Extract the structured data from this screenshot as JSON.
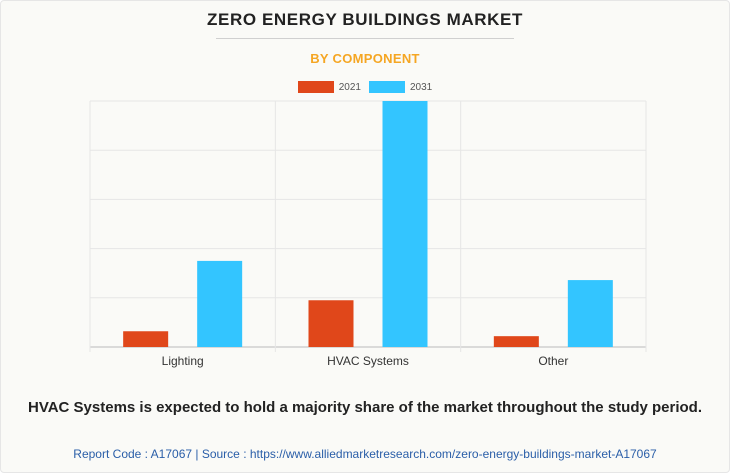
{
  "title": "ZERO ENERGY BUILDINGS MARKET",
  "subtitle": "BY COMPONENT",
  "footnote": "HVAC Systems is expected to hold a majority share of the market throughout the study period.",
  "source_line": "Report Code : A17067  |  Source : https://www.alliedmarketresearch.com/zero-energy-buildings-market-A17067",
  "colors": {
    "series_2021": "#e0471a",
    "series_2031": "#33c5ff",
    "title": "#222222",
    "subtitle": "#f5a623",
    "source": "#2a5ea8"
  },
  "chart_data": {
    "type": "bar",
    "categories": [
      "Lighting",
      "HVAC Systems",
      "Other"
    ],
    "series": [
      {
        "name": "2021",
        "values": [
          0.32,
          0.95,
          0.22
        ],
        "color": "#e0471a"
      },
      {
        "name": "2031",
        "values": [
          1.75,
          5.0,
          1.36
        ],
        "color": "#33c5ff"
      }
    ],
    "ylim": [
      0,
      5
    ],
    "grid": true,
    "legend": "top-center",
    "title": "ZERO ENERGY BUILDINGS MARKET",
    "subtitle": "BY COMPONENT",
    "xlabel": "",
    "ylabel": ""
  }
}
